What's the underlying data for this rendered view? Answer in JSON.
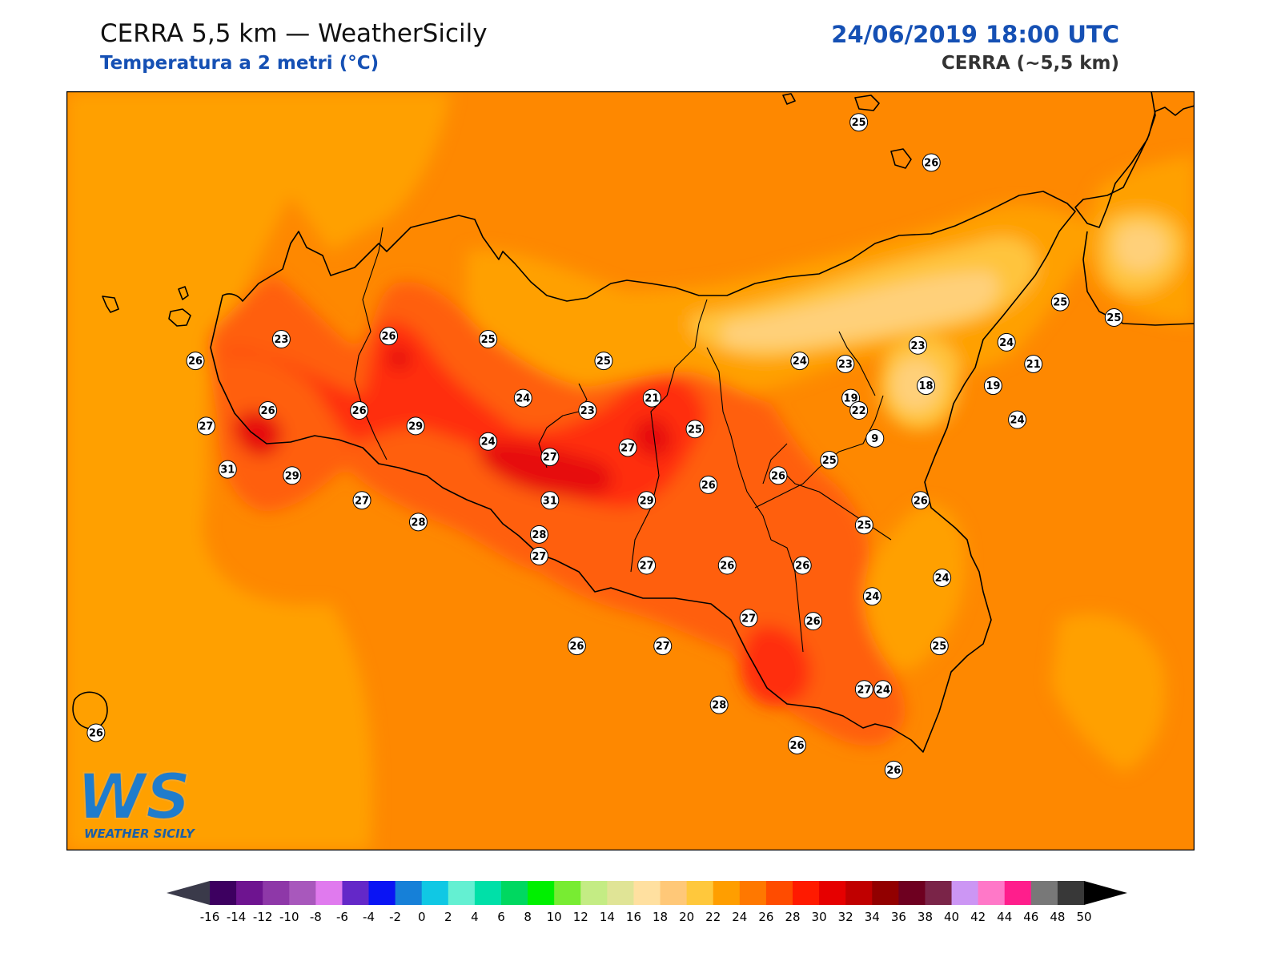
{
  "header": {
    "title": "CERRA 5,5 km — WeatherSicily",
    "subtitle": "Temperatura a 2 metri (°C)",
    "datetime": "24/06/2019 18:00 UTC",
    "model": "CERRA (~5,5 km)"
  },
  "logo": {
    "text": "WS",
    "caption": "WEATHER SICILY"
  },
  "colors": {
    "base_sea": "#fe8800",
    "band_24": "#ffa000",
    "band_22": "#ffc43c",
    "band_20": "#ffd07a",
    "band_26": "#ff5f10",
    "band_28": "#ff2f10",
    "band_30": "#e60a08",
    "coast": "#000000",
    "station_fill": "#ffffff"
  },
  "colorbar": {
    "ticks": [
      "-16",
      "-14",
      "-12",
      "-10",
      "-8",
      "-6",
      "-4",
      "-2",
      "0",
      "2",
      "4",
      "6",
      "8",
      "10",
      "12",
      "14",
      "16",
      "18",
      "20",
      "22",
      "24",
      "26",
      "28",
      "30",
      "32",
      "34",
      "36",
      "38",
      "40",
      "42",
      "44",
      "46",
      "48",
      "50"
    ],
    "colors": [
      "#3d0060",
      "#6e1490",
      "#8e38a8",
      "#a858bc",
      "#e07aee",
      "#6428c8",
      "#0a14f4",
      "#1680d8",
      "#10c8e4",
      "#64f0d2",
      "#00e0a8",
      "#00d860",
      "#00f000",
      "#78ec32",
      "#c4ec84",
      "#e0e496",
      "#ffe0a0",
      "#ffc878",
      "#ffc83c",
      "#ff9e00",
      "#ff7800",
      "#ff4c00",
      "#ff1a00",
      "#e60000",
      "#c00000",
      "#920000",
      "#6e0020",
      "#7a2448",
      "#cc96f4",
      "#ff78c8",
      "#ff1e8c",
      "#787878",
      "#383838"
    ]
  },
  "chart_data": {
    "type": "map",
    "variable": "Temperatura a 2 metri (°C)",
    "stations": [
      {
        "label": "25",
        "lon": 14.95,
        "lat": 38.8
      },
      {
        "label": "26",
        "lon": 15.22,
        "lat": 38.67
      },
      {
        "label": "25",
        "lon": 15.7,
        "lat": 38.22
      },
      {
        "label": "25",
        "lon": 15.9,
        "lat": 38.17
      },
      {
        "label": "23",
        "lon": 12.8,
        "lat": 38.1
      },
      {
        "label": "26",
        "lon": 13.2,
        "lat": 38.11
      },
      {
        "label": "25",
        "lon": 13.57,
        "lat": 38.1
      },
      {
        "label": "23",
        "lon": 15.17,
        "lat": 38.08
      },
      {
        "label": "24",
        "lon": 15.5,
        "lat": 38.09
      },
      {
        "label": "26",
        "lon": 12.48,
        "lat": 38.03
      },
      {
        "label": "25",
        "lon": 14.0,
        "lat": 38.03
      },
      {
        "label": "24",
        "lon": 14.73,
        "lat": 38.03
      },
      {
        "label": "23",
        "lon": 14.9,
        "lat": 38.02
      },
      {
        "label": "21",
        "lon": 15.6,
        "lat": 38.02
      },
      {
        "label": "18",
        "lon": 15.2,
        "lat": 37.95
      },
      {
        "label": "19",
        "lon": 15.45,
        "lat": 37.95
      },
      {
        "label": "24",
        "lon": 13.7,
        "lat": 37.91
      },
      {
        "label": "21",
        "lon": 14.18,
        "lat": 37.91
      },
      {
        "label": "19",
        "lon": 14.92,
        "lat": 37.91
      },
      {
        "label": "26",
        "lon": 12.75,
        "lat": 37.87
      },
      {
        "label": "26",
        "lon": 13.09,
        "lat": 37.87
      },
      {
        "label": "23",
        "lon": 13.94,
        "lat": 37.87
      },
      {
        "label": "22",
        "lon": 14.95,
        "lat": 37.87
      },
      {
        "label": "24",
        "lon": 15.54,
        "lat": 37.84
      },
      {
        "label": "27",
        "lon": 12.52,
        "lat": 37.82
      },
      {
        "label": "29",
        "lon": 13.3,
        "lat": 37.82
      },
      {
        "label": "25",
        "lon": 14.34,
        "lat": 37.81
      },
      {
        "label": "9",
        "lon": 15.01,
        "lat": 37.78
      },
      {
        "label": "24",
        "lon": 13.57,
        "lat": 37.77
      },
      {
        "label": "27",
        "lon": 14.09,
        "lat": 37.75
      },
      {
        "label": "27",
        "lon": 13.8,
        "lat": 37.72
      },
      {
        "label": "25",
        "lon": 14.84,
        "lat": 37.71
      },
      {
        "label": "31",
        "lon": 12.6,
        "lat": 37.68
      },
      {
        "label": "29",
        "lon": 12.84,
        "lat": 37.66
      },
      {
        "label": "26",
        "lon": 14.65,
        "lat": 37.66
      },
      {
        "label": "26",
        "lon": 14.39,
        "lat": 37.63
      },
      {
        "label": "27",
        "lon": 13.1,
        "lat": 37.58
      },
      {
        "label": "31",
        "lon": 13.8,
        "lat": 37.58
      },
      {
        "label": "29",
        "lon": 14.16,
        "lat": 37.58
      },
      {
        "label": "26",
        "lon": 15.18,
        "lat": 37.58
      },
      {
        "label": "28",
        "lon": 13.31,
        "lat": 37.51
      },
      {
        "label": "25",
        "lon": 14.97,
        "lat": 37.5
      },
      {
        "label": "28",
        "lon": 13.76,
        "lat": 37.47
      },
      {
        "label": "27",
        "lon": 13.76,
        "lat": 37.4
      },
      {
        "label": "27",
        "lon": 14.16,
        "lat": 37.37
      },
      {
        "label": "26",
        "lon": 14.46,
        "lat": 37.37
      },
      {
        "label": "26",
        "lon": 14.74,
        "lat": 37.37
      },
      {
        "label": "24",
        "lon": 15.26,
        "lat": 37.33
      },
      {
        "label": "24",
        "lon": 15.0,
        "lat": 37.27
      },
      {
        "label": "27",
        "lon": 14.54,
        "lat": 37.2
      },
      {
        "label": "26",
        "lon": 14.78,
        "lat": 37.19
      },
      {
        "label": "26",
        "lon": 13.9,
        "lat": 37.11
      },
      {
        "label": "27",
        "lon": 14.22,
        "lat": 37.11
      },
      {
        "label": "25",
        "lon": 15.25,
        "lat": 37.11
      },
      {
        "label": "27",
        "lon": 14.97,
        "lat": 36.97
      },
      {
        "label": "24",
        "lon": 15.04,
        "lat": 36.97
      },
      {
        "label": "28",
        "lon": 14.43,
        "lat": 36.92
      },
      {
        "label": "26",
        "lon": 12.11,
        "lat": 36.83
      },
      {
        "label": "26",
        "lon": 14.72,
        "lat": 36.79
      },
      {
        "label": "26",
        "lon": 15.08,
        "lat": 36.71
      }
    ]
  }
}
